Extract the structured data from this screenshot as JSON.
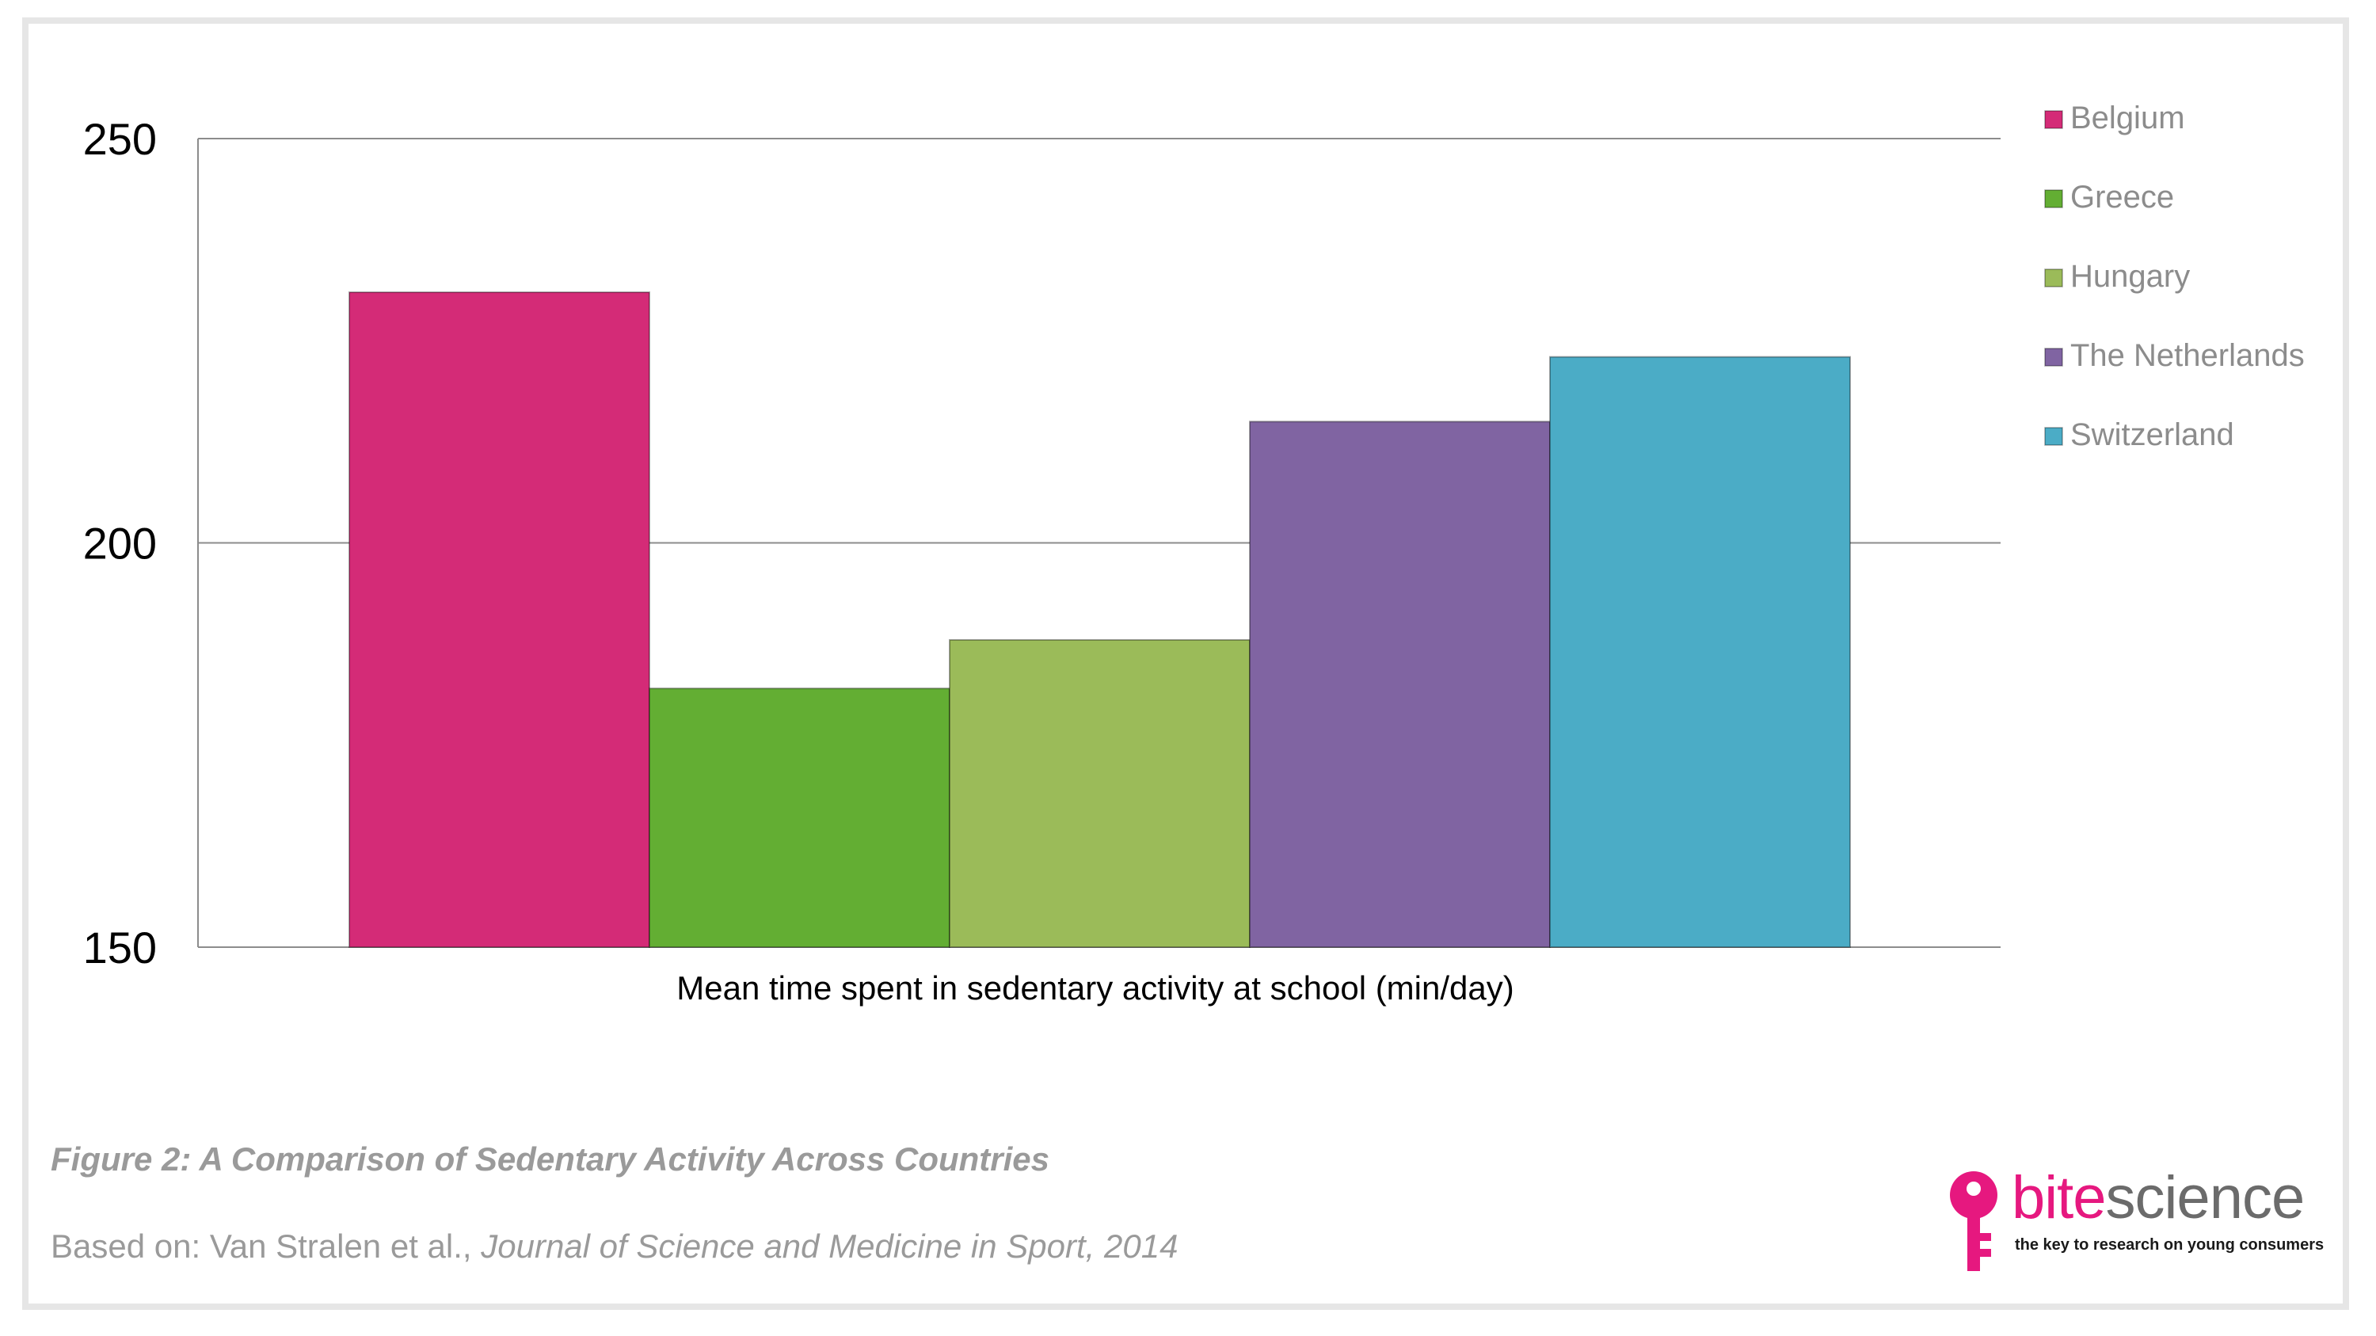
{
  "chart_data": {
    "type": "bar",
    "categories": [
      "Belgium",
      "Greece",
      "Hungary",
      "The Netherlands",
      "Switzerland"
    ],
    "values": [
      231,
      182,
      188,
      215,
      223
    ],
    "colors": [
      "#d42b77",
      "#63ae33",
      "#9bbb59",
      "#8064a2",
      "#4bacc6"
    ],
    "xlabel": "Mean time spent in sedentary activity at school (min/day)",
    "ylabel": "",
    "ylim": [
      150,
      250
    ],
    "yticks": [
      150,
      200,
      250
    ],
    "ytick_labels": [
      "150",
      "200",
      "250"
    ],
    "grid": true,
    "legend_position": "right",
    "legend": [
      "Belgium",
      "Greece",
      "Hungary",
      "The Netherlands",
      "Switzerland"
    ]
  },
  "caption": {
    "title": "Figure 2: A Comparison of Sedentary Activity Across Countries",
    "source_prefix": "Based on: Van Stralen et al., ",
    "source_italic": "Journal of Science and Medicine in Sport, 2014"
  },
  "logo": {
    "word_part1": "bite",
    "word_part2": "science",
    "tagline": "the key to research on young consumers",
    "key_color": "#e6187f",
    "icon": "key-icon"
  }
}
